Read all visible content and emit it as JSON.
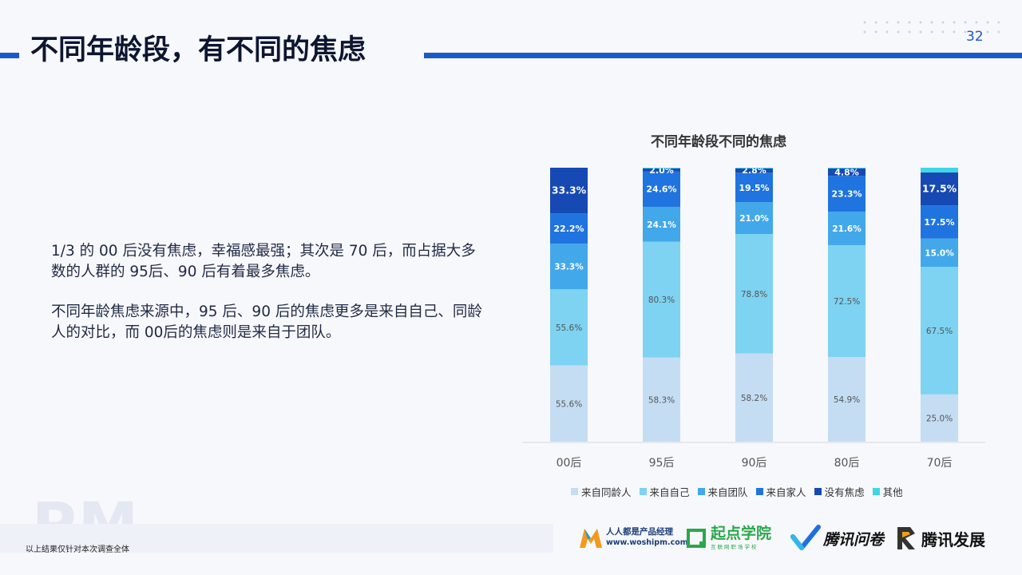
{
  "header": {
    "title": "不同年龄段，有不同的焦虑",
    "page_number": "32"
  },
  "body": {
    "paragraph1": "1/3 的 00 后没有焦虑，幸福感最强；其次是 70 后，而占据大多数的人群的 95后、90 后有着最多焦虑。",
    "paragraph2": "不同年龄焦虑来源中，95 后、90 后的焦虑更多是来自自己、同龄人的对比，而 00后的焦虑则是来自于团队。"
  },
  "watermark": "PM",
  "footer": {
    "note": "以上结果仅针对本次调查全体",
    "logos": {
      "woshipm_name": "人人都是产品经理",
      "woshipm_url": "www.woshipm.com",
      "qidian_name": "起点学院",
      "qidian_sub": "互联网职场学校",
      "wenjuan_name": "腾讯问卷",
      "fazhan_name": "腾讯发展"
    }
  },
  "colors": {
    "accent": "#1b59c9",
    "series": [
      "#c4ddf3",
      "#7dd3f1",
      "#42a8ea",
      "#1f74df",
      "#1649b3",
      "#3fd7e6"
    ]
  },
  "chart_data": {
    "type": "bar",
    "stacked": true,
    "title": "不同年龄段不同的焦虑",
    "categories": [
      "00后",
      "95后",
      "90后",
      "80后",
      "70后"
    ],
    "series": [
      {
        "name": "来自同龄人",
        "values": [
          55.6,
          58.3,
          58.2,
          54.9,
          25.0
        ],
        "labels": [
          "55.6%",
          "58.3%",
          "58.2%",
          "54.9%",
          "25.0%"
        ]
      },
      {
        "name": "来自自己",
        "values": [
          55.6,
          80.3,
          78.8,
          72.5,
          67.5
        ],
        "labels": [
          "55.6%",
          "80.3%",
          "78.8%",
          "72.5%",
          "67.5%"
        ]
      },
      {
        "name": "来自团队",
        "values": [
          33.3,
          24.1,
          21.0,
          21.6,
          15.0
        ],
        "labels": [
          "33.3%",
          "24.1%",
          "21.0%",
          "21.6%",
          "15.0%"
        ]
      },
      {
        "name": "来自家人",
        "values": [
          22.2,
          24.6,
          19.5,
          23.3,
          17.5
        ],
        "labels": [
          "22.2%",
          "24.6%",
          "19.5%",
          "23.3%",
          "17.5%"
        ]
      },
      {
        "name": "没有焦虑",
        "values": [
          33.3,
          2.0,
          2.8,
          4.8,
          17.5
        ],
        "labels": [
          "33.3%",
          "2.0%",
          "2.8%",
          "4.8%",
          "17.5%"
        ]
      },
      {
        "name": "其他",
        "values": [
          0,
          0.5,
          0.5,
          0.5,
          2.5
        ],
        "labels": [
          "",
          "",
          "",
          "",
          ""
        ]
      }
    ],
    "legend_position": "bottom",
    "grid": false
  }
}
